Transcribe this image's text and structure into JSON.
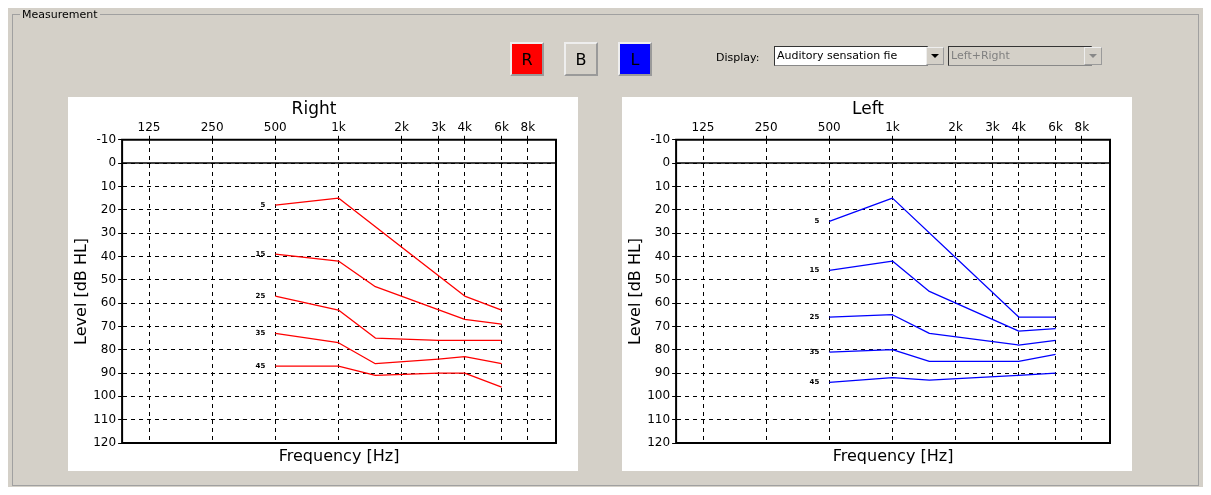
{
  "chart_data": [
    {
      "type": "other",
      "title": "Measurement",
      "annotations": [
        "R",
        "B",
        "L",
        "Display:",
        "Auditory sensation fie",
        "Left+Right"
      ]
    },
    {
      "type": "line",
      "title": "Right",
      "xlabel": "Frequency [Hz]",
      "ylabel": "Level [dB HL]",
      "log": "x",
      "grid": true,
      "legend": false,
      "marker": "none",
      "line_style": "solid",
      "xlim": [
        93,
        10900
      ],
      "xticks": [
        125,
        250,
        500,
        {
          "value": 1000,
          "label": "1k"
        },
        {
          "value": 2000,
          "label": "2k"
        },
        {
          "value": 3000,
          "label": "3k"
        },
        {
          "value": 4000,
          "label": "4k"
        },
        {
          "value": 6000,
          "label": "6k"
        },
        {
          "value": 8000,
          "label": "8k"
        }
      ],
      "ylim": [
        120,
        -10
      ],
      "yticks": [
        -10,
        0,
        10,
        20,
        30,
        40,
        50,
        60,
        70,
        80,
        90,
        100,
        110,
        120
      ],
      "ref_lines": [
        {
          "axis": "y",
          "value": 0,
          "color": "#000000",
          "line_style": "solid"
        }
      ],
      "series": [
        {
          "name": "5",
          "color": "#ff0000",
          "x": [
            500,
            1000,
            4000,
            6000
          ],
          "values": [
            18,
            15,
            57,
            63
          ]
        },
        {
          "name": "15",
          "color": "#ff0000",
          "x": [
            500,
            1000,
            1500,
            4000,
            6000
          ],
          "values": [
            39,
            42,
            53,
            67,
            69
          ]
        },
        {
          "name": "25",
          "color": "#ff0000",
          "x": [
            500,
            1000,
            1500,
            3000,
            6000
          ],
          "values": [
            57,
            63,
            75,
            76,
            76
          ]
        },
        {
          "name": "35",
          "color": "#ff0000",
          "x": [
            500,
            1000,
            1500,
            3000,
            4000,
            6000
          ],
          "values": [
            73,
            77,
            86,
            84,
            83,
            86
          ]
        },
        {
          "name": "45",
          "color": "#ff0000",
          "x": [
            500,
            1000,
            1500,
            3000,
            4000,
            6000
          ],
          "values": [
            87,
            87,
            91,
            90,
            90,
            96
          ]
        }
      ]
    },
    {
      "type": "line",
      "title": "Left",
      "xlabel": "Frequency [Hz]",
      "ylabel": "Level [dB HL]",
      "log": "x",
      "grid": true,
      "legend": false,
      "marker": "none",
      "line_style": "solid",
      "xlim": [
        93,
        10900
      ],
      "xticks": [
        125,
        250,
        500,
        {
          "value": 1000,
          "label": "1k"
        },
        {
          "value": 2000,
          "label": "2k"
        },
        {
          "value": 3000,
          "label": "3k"
        },
        {
          "value": 4000,
          "label": "4k"
        },
        {
          "value": 6000,
          "label": "6k"
        },
        {
          "value": 8000,
          "label": "8k"
        }
      ],
      "ylim": [
        120,
        -10
      ],
      "yticks": [
        -10,
        0,
        10,
        20,
        30,
        40,
        50,
        60,
        70,
        80,
        90,
        100,
        110,
        120
      ],
      "ref_lines": [
        {
          "axis": "y",
          "value": 0,
          "color": "#000000",
          "line_style": "solid"
        }
      ],
      "series": [
        {
          "name": "5",
          "color": "#0000ff",
          "x": [
            500,
            1000,
            4000,
            6000
          ],
          "values": [
            25,
            15,
            66,
            66
          ]
        },
        {
          "name": "15",
          "color": "#0000ff",
          "x": [
            500,
            1000,
            1500,
            4000,
            6000
          ],
          "values": [
            46,
            42,
            55,
            72,
            71
          ]
        },
        {
          "name": "25",
          "color": "#0000ff",
          "x": [
            500,
            1000,
            1500,
            4000,
            6000
          ],
          "values": [
            66,
            65,
            73,
            78,
            76
          ]
        },
        {
          "name": "35",
          "color": "#0000ff",
          "x": [
            500,
            1000,
            1500,
            4000,
            6000
          ],
          "values": [
            81,
            80,
            85,
            85,
            82
          ]
        },
        {
          "name": "45",
          "color": "#0000ff",
          "x": [
            500,
            1000,
            1500,
            4000,
            6000
          ],
          "values": [
            94,
            92,
            93,
            91,
            90
          ]
        }
      ]
    }
  ]
}
